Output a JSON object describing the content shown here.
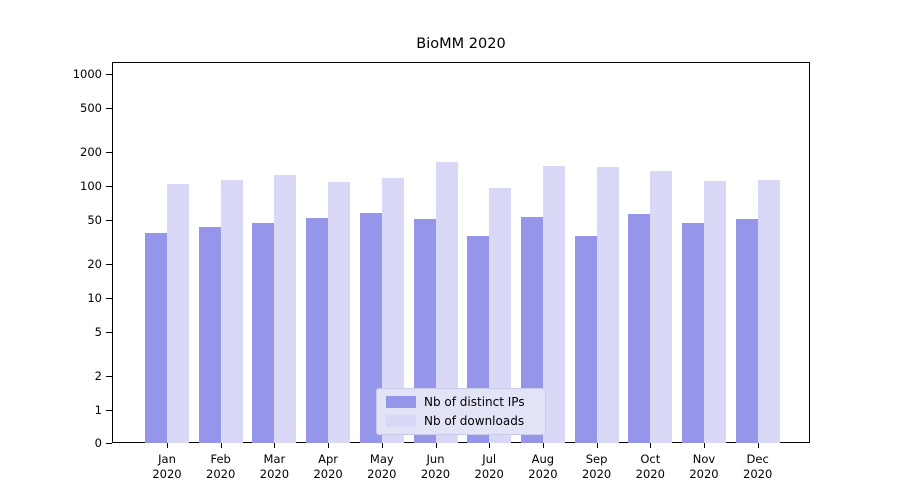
{
  "chart_data": {
    "type": "bar",
    "title": "BioMM 2020",
    "categories": [
      "Jan",
      "Feb",
      "Mar",
      "Apr",
      "May",
      "Jun",
      "Jul",
      "Aug",
      "Sep",
      "Oct",
      "Nov",
      "Dec"
    ],
    "year_label": "2020",
    "series": [
      {
        "name": "Nb of distinct IPs",
        "color": "#9595ea",
        "values": [
          38,
          43,
          47,
          52,
          57,
          51,
          36,
          53,
          36,
          56,
          47,
          51
        ]
      },
      {
        "name": "Nb of downloads",
        "color": "#d9d9f7",
        "values": [
          105,
          112,
          125,
          108,
          118,
          165,
          95,
          150,
          148,
          135,
          110,
          112
        ]
      }
    ],
    "yscale": "symlog",
    "yticks": [
      0,
      1,
      2,
      5,
      10,
      20,
      50,
      100,
      200,
      500,
      1000
    ],
    "ylim": [
      0,
      1000
    ],
    "grid": true,
    "legend_position": "lower center",
    "colors": {
      "grid_major": "#e0e0e0",
      "grid_minor": "#efefef",
      "legend_background": "#e3e3f8",
      "axis": "#000000"
    }
  }
}
